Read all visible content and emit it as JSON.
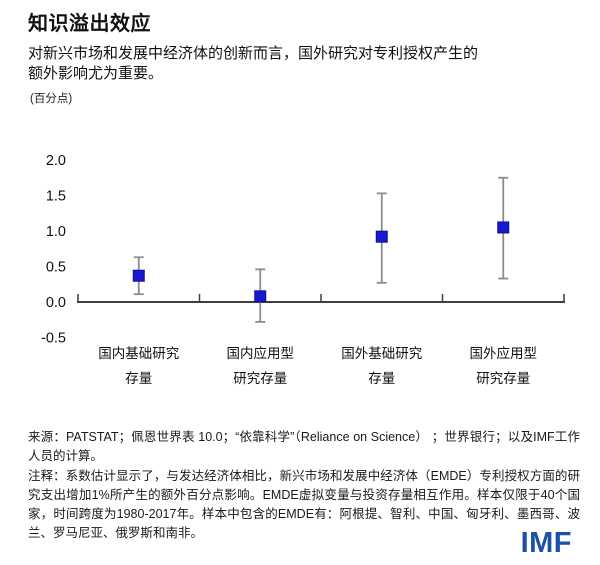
{
  "header": {
    "title": "知识溢出效应",
    "subtitle": "对新兴市场和发展中经济体的创新而言，国外研究对专利授权产生的额外影响尤为重要。",
    "unit": "(百分点)"
  },
  "chart_data": {
    "type": "scatter",
    "marker": "square",
    "title": "知识溢出效应",
    "ylabel": "(百分点)",
    "categories": [
      "国内基础研究存量",
      "国内应用型研究存量",
      "国外基础研究存量",
      "国外应用型研究存量"
    ],
    "category_lines": [
      [
        "国内基础研究",
        "存量"
      ],
      [
        "国内应用型",
        "研究存量"
      ],
      [
        "国外基础研究",
        "存量"
      ],
      [
        "国外应用型",
        "研究存量"
      ]
    ],
    "values": [
      0.37,
      0.08,
      0.92,
      1.05
    ],
    "ci_low": [
      0.11,
      -0.28,
      0.27,
      0.33
    ],
    "ci_high": [
      0.63,
      0.46,
      1.53,
      1.75
    ],
    "ylim": [
      -0.5,
      2.0
    ],
    "yticks": [
      2.0,
      1.5,
      1.0,
      0.5,
      0.0,
      -0.5
    ],
    "grid": false,
    "legend": false
  },
  "footer": {
    "source": "来源：PATSTAT；佩恩世界表 10.0；“依靠科学”（Reliance on Science） ；世界银行；以及IMF工作人员的计算。",
    "note": "注释：系数估计显示了，与发达经济体相比，新兴市场和发展中经济体（EMDE）专利授权方面的研究支出增加1%所产生的额外百分点影响。EMDE虚拟变量与投资存量相互作用。样本仅限于40个国家，时间跨度为1980-2017年。样本中包含的EMDE有：阿根提、智利、中国、匈牙利、墨西哥、波兰、罗马尼亚、俄罗斯和南非。",
    "logo": "IMF"
  },
  "colors": {
    "marker_fill": "#1a18cf",
    "marker_stroke": "#0d0d99",
    "errorbar": "#8c8c8c",
    "axis": "#3f3f3f",
    "tick_label": "#111111",
    "logo_blue": "#1b51a6"
  }
}
